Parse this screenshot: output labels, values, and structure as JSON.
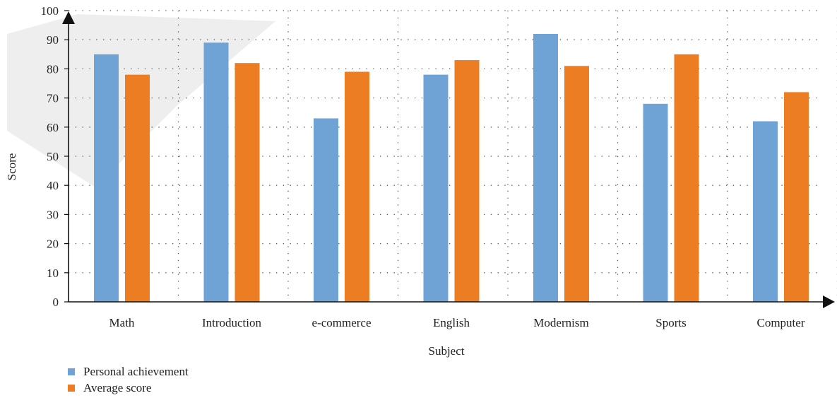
{
  "chart_data": {
    "type": "bar",
    "categories": [
      "Math",
      "Introduction",
      "e-commerce",
      "English",
      "Modernism",
      "Sports",
      "Computer"
    ],
    "series": [
      {
        "name": "Personal achievement",
        "values": [
          85,
          89,
          63,
          78,
          92,
          68,
          62
        ],
        "color": "#6FA3D6"
      },
      {
        "name": "Average score",
        "values": [
          78,
          82,
          79,
          83,
          81,
          85,
          72
        ],
        "color": "#ED7D23"
      }
    ],
    "xlabel": "Subject",
    "ylabel": "Score",
    "ylim": [
      0,
      100
    ],
    "yticks": [
      0,
      10,
      20,
      30,
      40,
      50,
      60,
      70,
      80,
      90,
      100
    ],
    "grid": true,
    "legend_position": "bottom-left"
  }
}
